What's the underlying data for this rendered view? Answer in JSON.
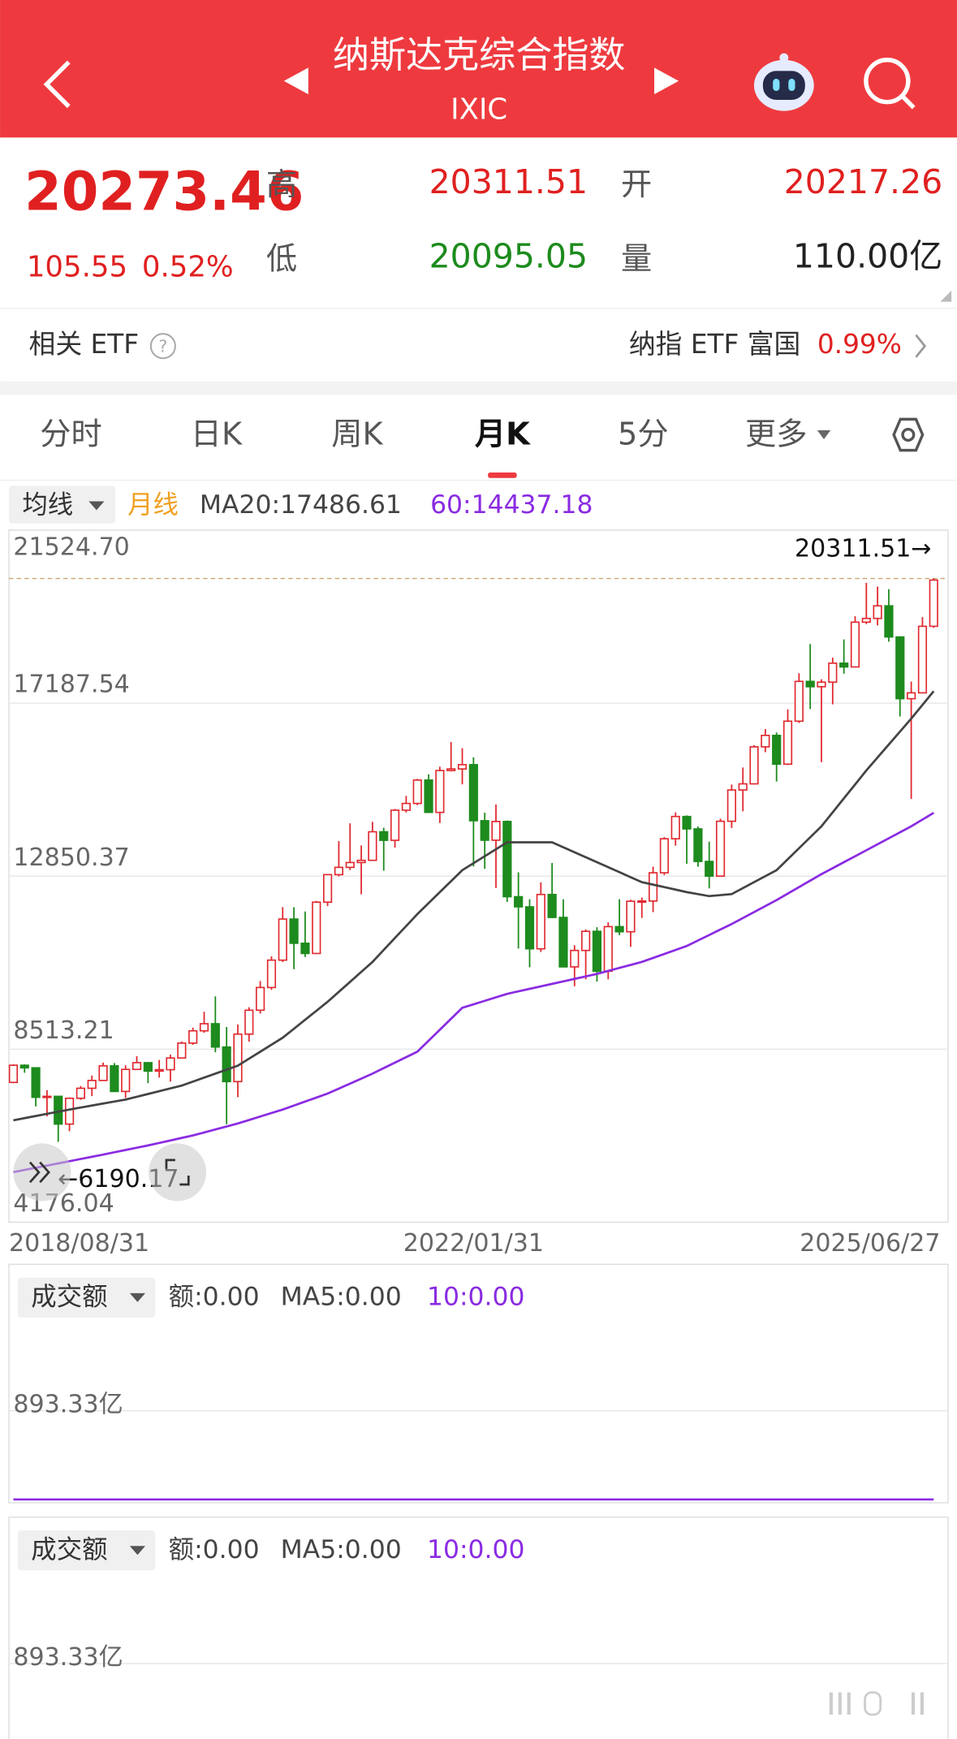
{
  "header": {
    "title": "纳斯达克综合指数",
    "code": "IXIC"
  },
  "quote": {
    "price": "20273.46",
    "change": "105.55",
    "change_pct": "0.52%",
    "high_label": "高",
    "high": "20311.51",
    "low_label": "低",
    "low": "20095.05",
    "open_label": "开",
    "open": "20217.26",
    "volume_label": "量",
    "volume": "110.00亿"
  },
  "etf": {
    "label": "相关 ETF",
    "name": "纳指 ETF 富国",
    "change": "0.99%"
  },
  "tabs": [
    "分时",
    "日K",
    "周K",
    "月K",
    "5分",
    "更多"
  ],
  "indicator": {
    "selector": "均线",
    "period": "月线",
    "ma20": "MA20:17486.61",
    "ma60": "60:14437.18"
  },
  "chart_data": {
    "type": "candlestick",
    "categories": [
      "2018/08/31",
      null,
      null,
      null,
      null,
      null,
      null,
      null,
      null,
      null,
      null,
      null,
      null,
      null,
      null,
      null,
      null,
      null,
      null,
      null,
      null,
      null,
      null,
      null,
      null,
      null,
      null,
      null,
      null,
      null,
      null,
      null,
      null,
      null,
      null,
      null,
      null,
      null,
      null,
      null,
      null,
      "2022/01/31",
      null,
      null,
      null,
      null,
      null,
      null,
      null,
      null,
      null,
      null,
      null,
      null,
      null,
      null,
      null,
      null,
      null,
      null,
      null,
      null,
      null,
      null,
      null,
      null,
      null,
      null,
      null,
      null,
      null,
      null,
      null,
      null,
      null,
      null,
      null,
      null,
      null,
      null,
      null,
      null,
      "2025/06/27"
    ],
    "open": [
      7680,
      8110,
      8046,
      7306,
      7331,
      6635,
      7282,
      7533,
      7729,
      8095,
      7453,
      8006,
      8175,
      7963,
      7999,
      8292,
      8665,
      8973,
      9151,
      8567,
      7700,
      8890,
      9490,
      10059,
      10745,
      11775,
      11168,
      10912,
      12199,
      12888,
      13071,
      13192,
      13247,
      13963,
      13749,
      14504,
      14673,
      15259,
      14449,
      15498,
      15538,
      15645,
      14240,
      13751,
      14221,
      12335,
      12081,
      11029,
      12391,
      11816,
      10576,
      10988,
      11468,
      10466,
      11585,
      11456,
      12222,
      12227,
      12935,
      13788,
      14346,
      14035,
      13219,
      12851,
      14226,
      15011,
      15164,
      16092,
      16379,
      15658,
      16735,
      17733,
      17599,
      17714,
      18189,
      18095,
      19218,
      19311,
      19627,
      18847,
      17299,
      17446,
      19114
    ],
    "high": [
      8133,
      8133,
      8048,
      7486,
      7327,
      7303,
      7590,
      7850,
      8176,
      8165,
      8110,
      8339,
      8103,
      8243,
      8375,
      8705,
      9052,
      9451,
      9838,
      9070,
      9132,
      9565,
      10222,
      10840,
      12074,
      12070,
      11965,
      12229,
      12902,
      13728,
      14175,
      13620,
      14211,
      14064,
      14536,
      14864,
      15288,
      15403,
      15595,
      16212,
      16057,
      15832,
      14441,
      14646,
      14247,
      12946,
      12271,
      12695,
      13181,
      12270,
      11119,
      11515,
      11571,
      11691,
      12270,
      12259,
      12315,
      13089,
      13829,
      14447,
      14374,
      14093,
      13715,
      14291,
      15148,
      15575,
      16134,
      16539,
      16453,
      17032,
      17937,
      18671,
      17786,
      18327,
      18785,
      19367,
      20204,
      20110,
      20045,
      18840,
      17729,
      19344,
      20311.51
    ],
    "low": [
      7660,
      7922,
      7077,
      6830,
      6190.17,
      6457,
      7243,
      7336,
      7723,
      7445,
      7292,
      8006,
      7663,
      7800,
      7700,
      8280,
      8622,
      8923,
      8436,
      6631,
      7310,
      8700,
      9405,
      10000,
      10696,
      10519,
      10822,
      10920,
      12100,
      12843,
      13003,
      12397,
      13243,
      12986,
      13565,
      14446,
      14632,
      14444,
      14182,
      15476,
      15152,
      13094,
      13038,
      12555,
      12202,
      11035,
      10565,
      10950,
      11797,
      10573,
      10089,
      10262,
      10207,
      10265,
      11370,
      11077,
      11803,
      11949,
      12877,
      13614,
      13161,
      13086,
      12544,
      12838,
      14058,
      14477,
      15150,
      15958,
      15223,
      15635,
      16690,
      17040,
      15708,
      17158,
      17925,
      18111,
      19169,
      19137,
      18728,
      16854,
      14784,
      17447,
      19075
    ],
    "close": [
      8110,
      8046,
      7306,
      7331,
      6635,
      7282,
      7533,
      7729,
      8095,
      7453,
      8006,
      8175,
      7963,
      7999,
      8292,
      8665,
      8973,
      9151,
      8567,
      7700,
      8890,
      9490,
      10059,
      10745,
      11775,
      11168,
      10912,
      12199,
      12888,
      13071,
      13192,
      13247,
      13963,
      13749,
      14504,
      14673,
      15259,
      14449,
      15498,
      15538,
      15645,
      14240,
      13751,
      14221,
      12335,
      12081,
      11029,
      12391,
      11816,
      10576,
      10988,
      11468,
      10466,
      11585,
      11456,
      12222,
      12227,
      12935,
      13788,
      14346,
      14035,
      13219,
      12851,
      14226,
      15011,
      15164,
      16092,
      16379,
      15658,
      16735,
      17733,
      17599,
      17714,
      18189,
      18095,
      19218,
      19311,
      19627,
      18847,
      17299,
      17446,
      19114,
      20273.46
    ],
    "up_color": "#e0282e",
    "down_color": "#1d8b1d",
    "series": [
      {
        "color": "#444444",
        "values": [
          6730,
          6784,
          6838,
          6892,
          6946,
          7000,
          7050,
          7100,
          7150,
          7200,
          7250,
          7320,
          7390,
          7460,
          7530,
          7600,
          7700,
          7800,
          7900,
          8000,
          8100,
          8275,
          8450,
          8625,
          8800,
          9025,
          9250,
          9475,
          9700,
          9950,
          10200,
          10450,
          10700,
          11000,
          11300,
          11600,
          11900,
          12175,
          12450,
          12725,
          13000,
          13175,
          13350,
          13525,
          13700,
          13700,
          13700,
          13700,
          13700,
          13575,
          13450,
          13325,
          13200,
          13075,
          12950,
          12825,
          12700,
          12638,
          12575,
          12513,
          12450,
          12400,
          12350,
          12375,
          12400,
          12550,
          12700,
          12850,
          13000,
          13275,
          13550,
          13825,
          14100,
          14450,
          14800,
          15150,
          15500,
          15825,
          16150,
          16475,
          16800,
          17143,
          17486.61
        ]
      },
      {
        "color": "#8a2be2",
        "values": [
          5430,
          5485,
          5540,
          5595,
          5650,
          5705,
          5760,
          5815,
          5870,
          5928,
          5985,
          6043,
          6100,
          6163,
          6225,
          6288,
          6350,
          6425,
          6500,
          6575,
          6650,
          6738,
          6825,
          6913,
          7000,
          7100,
          7200,
          7300,
          7400,
          7525,
          7650,
          7775,
          7900,
          8038,
          8175,
          8313,
          8450,
          8725,
          9000,
          9275,
          9550,
          9638,
          9725,
          9813,
          9900,
          9963,
          10025,
          10088,
          10150,
          10213,
          10275,
          10338,
          10400,
          10475,
          10550,
          10625,
          10700,
          10800,
          10900,
          11000,
          11100,
          11238,
          11375,
          11513,
          11650,
          11800,
          11950,
          12100,
          12250,
          12413,
          12575,
          12738,
          12900,
          13050,
          13200,
          13350,
          13500,
          13650,
          13800,
          13950,
          14100,
          14269,
          14437.18
        ]
      }
    ],
    "ylim": [
      4176.04,
      21524.7
    ],
    "yticks": [
      {
        "value": 21524.7,
        "label": "21524.70"
      },
      17187.54,
      12850.37,
      8513.21,
      4176.04
    ],
    "grid": true,
    "max_label": "20311.51→",
    "min_label": "←6190.17"
  },
  "volume_panels": [
    {
      "selector": "成交额",
      "amount": "额:0.00",
      "ma5": "MA5:0.00",
      "ma10": "10:0.00",
      "tick": "893.33亿"
    },
    {
      "selector": "成交额",
      "amount": "额:0.00",
      "ma5": "MA5:0.00",
      "ma10": "10:0.00",
      "tick": "893.33亿"
    }
  ]
}
